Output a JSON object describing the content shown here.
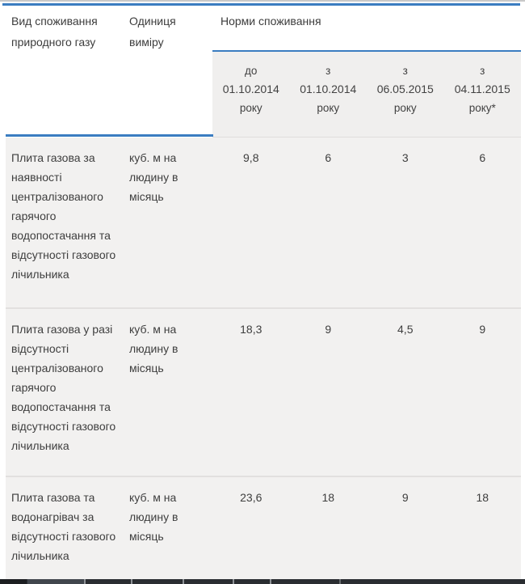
{
  "table": {
    "col_type_header": "Вид споживання природного газу",
    "col_unit_header": "Одиниця виміру",
    "group_header": "Норми споживання",
    "period_headers": [
      {
        "prefix": "до",
        "date": "01.10.2014",
        "suffix": "року"
      },
      {
        "prefix": "з",
        "date": "01.10.2014",
        "suffix": "року"
      },
      {
        "prefix": "з",
        "date": "06.05.2015",
        "suffix": "року"
      },
      {
        "prefix": "з",
        "date": "04.11.2015",
        "suffix": "року*"
      }
    ],
    "rows": [
      {
        "type": "Плита газова за наявності централізованого гарячого водопостачання та відсутності газового лічильника",
        "unit": "куб. м на людину в місяць",
        "values": [
          "9,8",
          "6",
          "3",
          "6"
        ]
      },
      {
        "type": "Плита газова у разі відсутності централізованого гарячого водопостачання та відсутності газового лічильника",
        "unit": "куб. м на людину в місяць",
        "values": [
          "18,3",
          "9",
          "4,5",
          "9"
        ]
      },
      {
        "type": "Плита газова та водонагрівач за відсутності газового лічильника",
        "unit": "куб. м на людину в місяць",
        "values": [
          "23,6",
          "18",
          "9",
          "18"
        ]
      }
    ]
  },
  "colors": {
    "accent_blue": "#3b7dc1",
    "subheader_bg": "#f0efee",
    "row_bg": "#f2f1f0",
    "text": "#3e3e3e"
  }
}
